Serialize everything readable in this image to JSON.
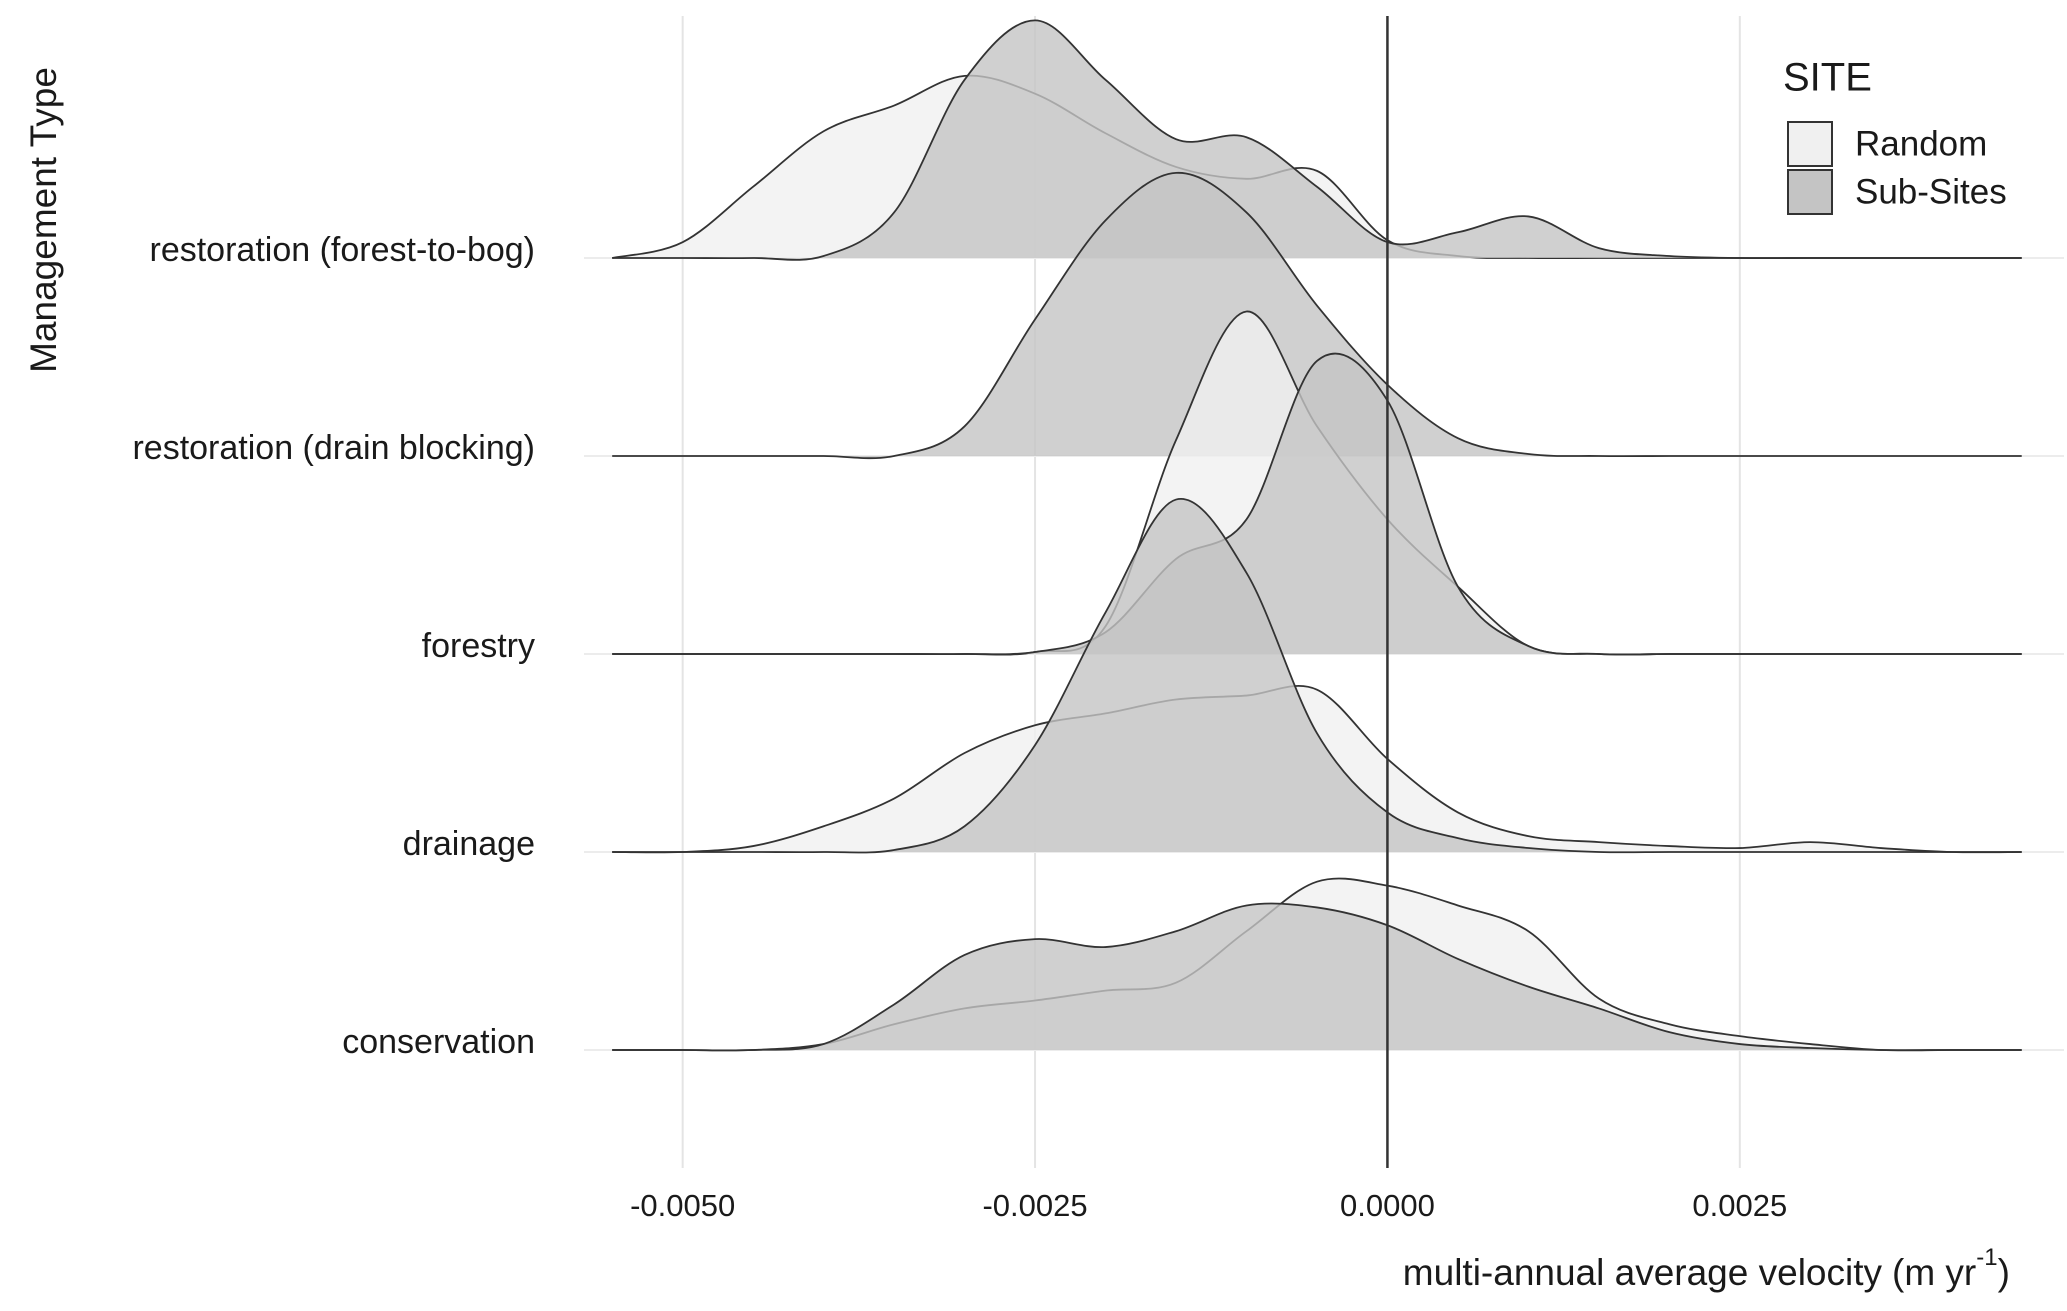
{
  "chart_data": {
    "type": "ridgeline",
    "y_label": "Management Type",
    "x_label": "multi-annual average velocity",
    "x_unit": [
      "(m yr",
      "-1",
      ")"
    ],
    "legend_title": "SITE",
    "legend_position": "top-right",
    "categories": [
      "restoration (forest-to-bog)",
      "restoration (drain blocking)",
      "forestry",
      "drainage",
      "conservation"
    ],
    "x": [
      -0.0055,
      -0.005,
      -0.0045,
      -0.004,
      -0.0035,
      -0.003,
      -0.0025,
      -0.002,
      -0.0015,
      -0.001,
      -0.0005,
      0,
      0.0005,
      0.001,
      0.0015,
      0.002,
      0.0025,
      0.003,
      0.0035,
      0.004,
      0.0045
    ],
    "xlim": [
      -0.0057,
      0.0048
    ],
    "xticks": [
      {
        "value": -0.005,
        "label": "-0.0050"
      },
      {
        "value": -0.0025,
        "label": "-0.0025"
      },
      {
        "value": 0,
        "label": "0.0000"
      },
      {
        "value": 0.0025,
        "label": "0.0025"
      }
    ],
    "vline": 0,
    "grid": true,
    "series": [
      {
        "name": "Random",
        "color": "#f0f0f0",
        "values": [
          [
            0,
            0.08,
            0.36,
            0.64,
            0.77,
            0.92,
            0.83,
            0.63,
            0.46,
            0.4,
            0.44,
            0.09,
            0.01,
            0,
            0,
            0,
            0,
            0,
            0,
            0,
            0
          ],
          [
            null,
            null,
            null,
            null,
            null,
            null,
            null,
            null,
            null,
            null,
            null,
            null,
            null,
            null,
            null,
            null,
            null,
            null,
            null,
            null,
            null
          ],
          [
            0,
            0,
            0,
            0,
            0,
            0,
            0.01,
            0.14,
            1.08,
            1.73,
            1.15,
            0.68,
            0.34,
            0.04,
            0,
            0,
            0,
            0,
            0,
            0,
            0
          ],
          [
            0,
            0,
            0.03,
            0.13,
            0.27,
            0.5,
            0.64,
            0.7,
            0.77,
            0.79,
            0.82,
            0.47,
            0.2,
            0.08,
            0.05,
            0.03,
            0.02,
            0.05,
            0.02,
            0,
            0
          ],
          [
            0,
            0,
            0,
            0.03,
            0.13,
            0.21,
            0.25,
            0.3,
            0.34,
            0.6,
            0.85,
            0.83,
            0.73,
            0.6,
            0.26,
            0.13,
            0.07,
            0.03,
            0,
            0,
            0
          ]
        ]
      },
      {
        "name": "Sub-Sites",
        "color": "#c4c4c4",
        "values": [
          [
            0,
            0,
            0,
            0.01,
            0.23,
            0.9,
            1.2,
            0.9,
            0.6,
            0.61,
            0.36,
            0.08,
            0.13,
            0.21,
            0.05,
            0.01,
            0,
            0,
            0,
            0,
            0
          ],
          [
            0,
            0,
            0,
            0,
            0,
            0.15,
            0.69,
            1.19,
            1.43,
            1.23,
            0.76,
            0.36,
            0.09,
            0.01,
            0,
            0,
            0,
            0,
            0,
            0,
            0
          ],
          [
            0,
            0,
            0,
            0,
            0,
            0,
            0.01,
            0.11,
            0.48,
            0.68,
            1.48,
            1.28,
            0.34,
            0.04,
            0,
            0,
            0,
            0,
            0,
            0,
            0
          ],
          [
            0,
            0,
            0,
            0,
            0.01,
            0.13,
            0.54,
            1.21,
            1.78,
            1.41,
            0.6,
            0.2,
            0.07,
            0.02,
            0,
            0,
            0,
            0,
            0,
            0,
            0
          ],
          [
            0,
            0,
            0,
            0.03,
            0.23,
            0.48,
            0.56,
            0.52,
            0.6,
            0.73,
            0.72,
            0.63,
            0.46,
            0.32,
            0.21,
            0.09,
            0.03,
            0.01,
            0,
            0,
            0
          ]
        ]
      }
    ]
  }
}
